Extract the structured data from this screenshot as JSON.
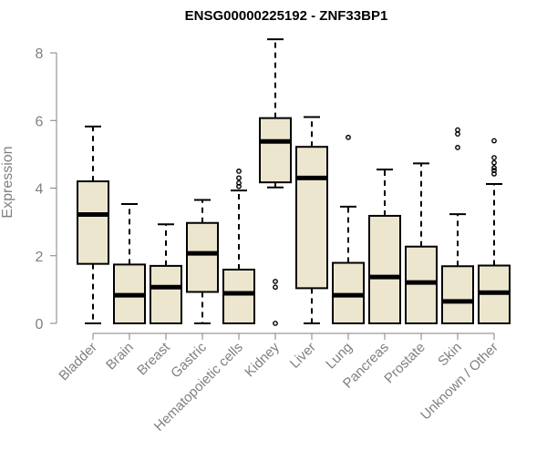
{
  "chart_data": {
    "type": "box",
    "title": "ENSG00000225192 - ZNF33BP1",
    "xlabel": "",
    "ylabel": "Expression",
    "ylim": [
      0,
      8.4
    ],
    "yticks": [
      0,
      2,
      4,
      6,
      8
    ],
    "grid": false,
    "legend": "none",
    "colors": {
      "box_fill": "#ede6cf",
      "stroke": "#000000",
      "axis_text": "#808080",
      "title": "#000000"
    },
    "categories": [
      "Bladder",
      "Brain",
      "Breast",
      "Gastric",
      "Hematopoietic cells",
      "Kidney",
      "Liver",
      "Lung",
      "Pancreas",
      "Prostate",
      "Skin",
      "Unknown / Other"
    ],
    "boxes": [
      {
        "category": "Bladder",
        "min": 0,
        "q1": 1.76,
        "median": 3.22,
        "q3": 4.2,
        "max": 5.82,
        "outliers": []
      },
      {
        "category": "Brain",
        "min": 0,
        "q1": 0,
        "median": 0.83,
        "q3": 1.74,
        "max": 3.53,
        "outliers": []
      },
      {
        "category": "Breast",
        "min": 0,
        "q1": 0,
        "median": 1.07,
        "q3": 1.7,
        "max": 2.93,
        "outliers": []
      },
      {
        "category": "Gastric",
        "min": 0,
        "q1": 0.93,
        "median": 2.07,
        "q3": 2.97,
        "max": 3.65,
        "outliers": []
      },
      {
        "category": "Hematopoietic cells",
        "min": 0,
        "q1": 0,
        "median": 0.89,
        "q3": 1.59,
        "max": 3.93,
        "outliers": [
          4.05,
          4.15,
          4.3,
          4.5
        ]
      },
      {
        "category": "Kidney",
        "min": 4.02,
        "q1": 4.17,
        "median": 5.38,
        "q3": 6.07,
        "max": 8.4,
        "outliers": [
          0,
          1.07,
          1.24
        ]
      },
      {
        "category": "Liver",
        "min": 0,
        "q1": 1.04,
        "median": 4.3,
        "q3": 5.22,
        "max": 6.1,
        "outliers": []
      },
      {
        "category": "Lung",
        "min": 0,
        "q1": 0,
        "median": 0.83,
        "q3": 1.79,
        "max": 3.45,
        "outliers": [
          5.5
        ]
      },
      {
        "category": "Pancreas",
        "min": 0,
        "q1": 0,
        "median": 1.37,
        "q3": 3.18,
        "max": 4.55,
        "outliers": []
      },
      {
        "category": "Prostate",
        "min": 0,
        "q1": 0,
        "median": 1.21,
        "q3": 2.27,
        "max": 4.73,
        "outliers": []
      },
      {
        "category": "Skin",
        "min": 0,
        "q1": 0,
        "median": 0.65,
        "q3": 1.69,
        "max": 3.23,
        "outliers": [
          5.2,
          5.6,
          5.72
        ]
      },
      {
        "category": "Unknown / Other",
        "min": 0,
        "q1": 0,
        "median": 0.91,
        "q3": 1.71,
        "max": 4.12,
        "outliers": [
          4.42,
          4.52,
          4.6,
          4.75,
          4.9,
          5.4
        ]
      }
    ]
  }
}
